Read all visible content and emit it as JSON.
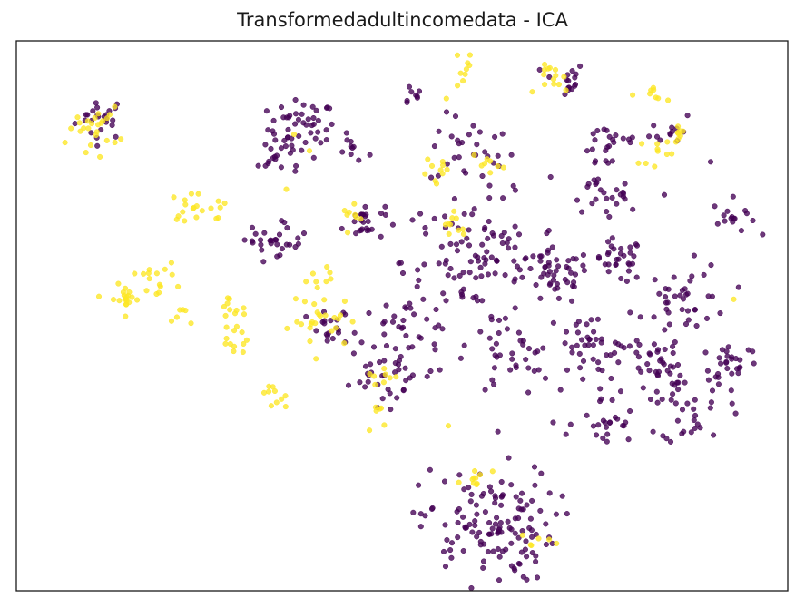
{
  "chart_data": {
    "type": "scatter",
    "title": "Transformedadultincomedata - ICA",
    "xlabel": "",
    "ylabel": "",
    "xlim": [
      0,
      100
    ],
    "ylim": [
      0,
      100
    ],
    "axes_ticks": "none",
    "grid": false,
    "legend": "none",
    "series": [
      {
        "color": "#440154",
        "cluster_points": [
          [
            11,
            86,
            3.0,
            24
          ],
          [
            37,
            84,
            4.0,
            48
          ],
          [
            43.5,
            80,
            2.0,
            10
          ],
          [
            51,
            90,
            1.5,
            8
          ],
          [
            59,
            80,
            5.0,
            30
          ],
          [
            71,
            93,
            2.5,
            16
          ],
          [
            77,
            81,
            4.0,
            22
          ],
          [
            85,
            84,
            2.5,
            12
          ],
          [
            75,
            73,
            3.0,
            16
          ],
          [
            78,
            71,
            2.0,
            10
          ],
          [
            93,
            68,
            2.5,
            16
          ],
          [
            45,
            67,
            2.5,
            26
          ],
          [
            35,
            64.5,
            2.5,
            18
          ],
          [
            60,
            60,
            9.0,
            110
          ],
          [
            70,
            57,
            4.0,
            40
          ],
          [
            78,
            60,
            3.0,
            30
          ],
          [
            87,
            53,
            5.0,
            40
          ],
          [
            50,
            46,
            6.0,
            45
          ],
          [
            64,
            42,
            5.0,
            35
          ],
          [
            74,
            44,
            5.0,
            40
          ],
          [
            84,
            40,
            6.0,
            50
          ],
          [
            93,
            42,
            3.0,
            25
          ],
          [
            76,
            30,
            4.0,
            25
          ],
          [
            88,
            32,
            4.0,
            25
          ],
          [
            61,
            12,
            8.0,
            130
          ],
          [
            48,
            37,
            4.0,
            20
          ],
          [
            41,
            47,
            3.0,
            20
          ],
          [
            32,
            63,
            3.0,
            12
          ],
          [
            34,
            79,
            3.0,
            15
          ]
        ],
        "x_extra": [
          74,
          84,
          90,
          53
        ],
        "y_extra": [
          80,
          72,
          78,
          66
        ]
      },
      {
        "color": "#fde725",
        "cluster_points": [
          [
            10,
            84,
            3.0,
            25
          ],
          [
            22.5,
            70,
            2.0,
            14
          ],
          [
            18,
            57,
            2.5,
            14
          ],
          [
            14,
            53,
            2.0,
            20
          ],
          [
            28,
            52,
            3.0,
            12
          ],
          [
            29,
            45,
            2.0,
            10
          ],
          [
            33,
            35,
            2.0,
            10
          ],
          [
            40,
            49,
            4.0,
            25
          ],
          [
            58,
            95,
            3.0,
            10
          ],
          [
            70,
            93,
            2.0,
            14
          ],
          [
            83,
            90,
            1.5,
            8
          ],
          [
            61,
            78,
            1.5,
            8
          ],
          [
            83,
            80,
            2.0,
            10
          ],
          [
            86,
            83,
            1.0,
            8
          ],
          [
            54,
            76,
            2.0,
            10
          ],
          [
            57,
            67,
            2.0,
            10
          ],
          [
            44,
            68,
            1.5,
            8
          ],
          [
            47,
            39,
            2.0,
            8
          ],
          [
            47,
            32,
            2.0,
            6
          ],
          [
            60,
            20,
            2.0,
            10
          ],
          [
            67,
            9,
            2.0,
            6
          ],
          [
            26,
            70,
            1.5,
            6
          ],
          [
            39,
            57,
            2.0,
            8
          ],
          [
            21,
            50,
            1.5,
            6
          ]
        ],
        "x_extra": [
          36,
          38,
          35,
          56,
          93
        ],
        "y_extra": [
          83,
          80,
          73,
          30,
          53
        ]
      }
    ]
  }
}
